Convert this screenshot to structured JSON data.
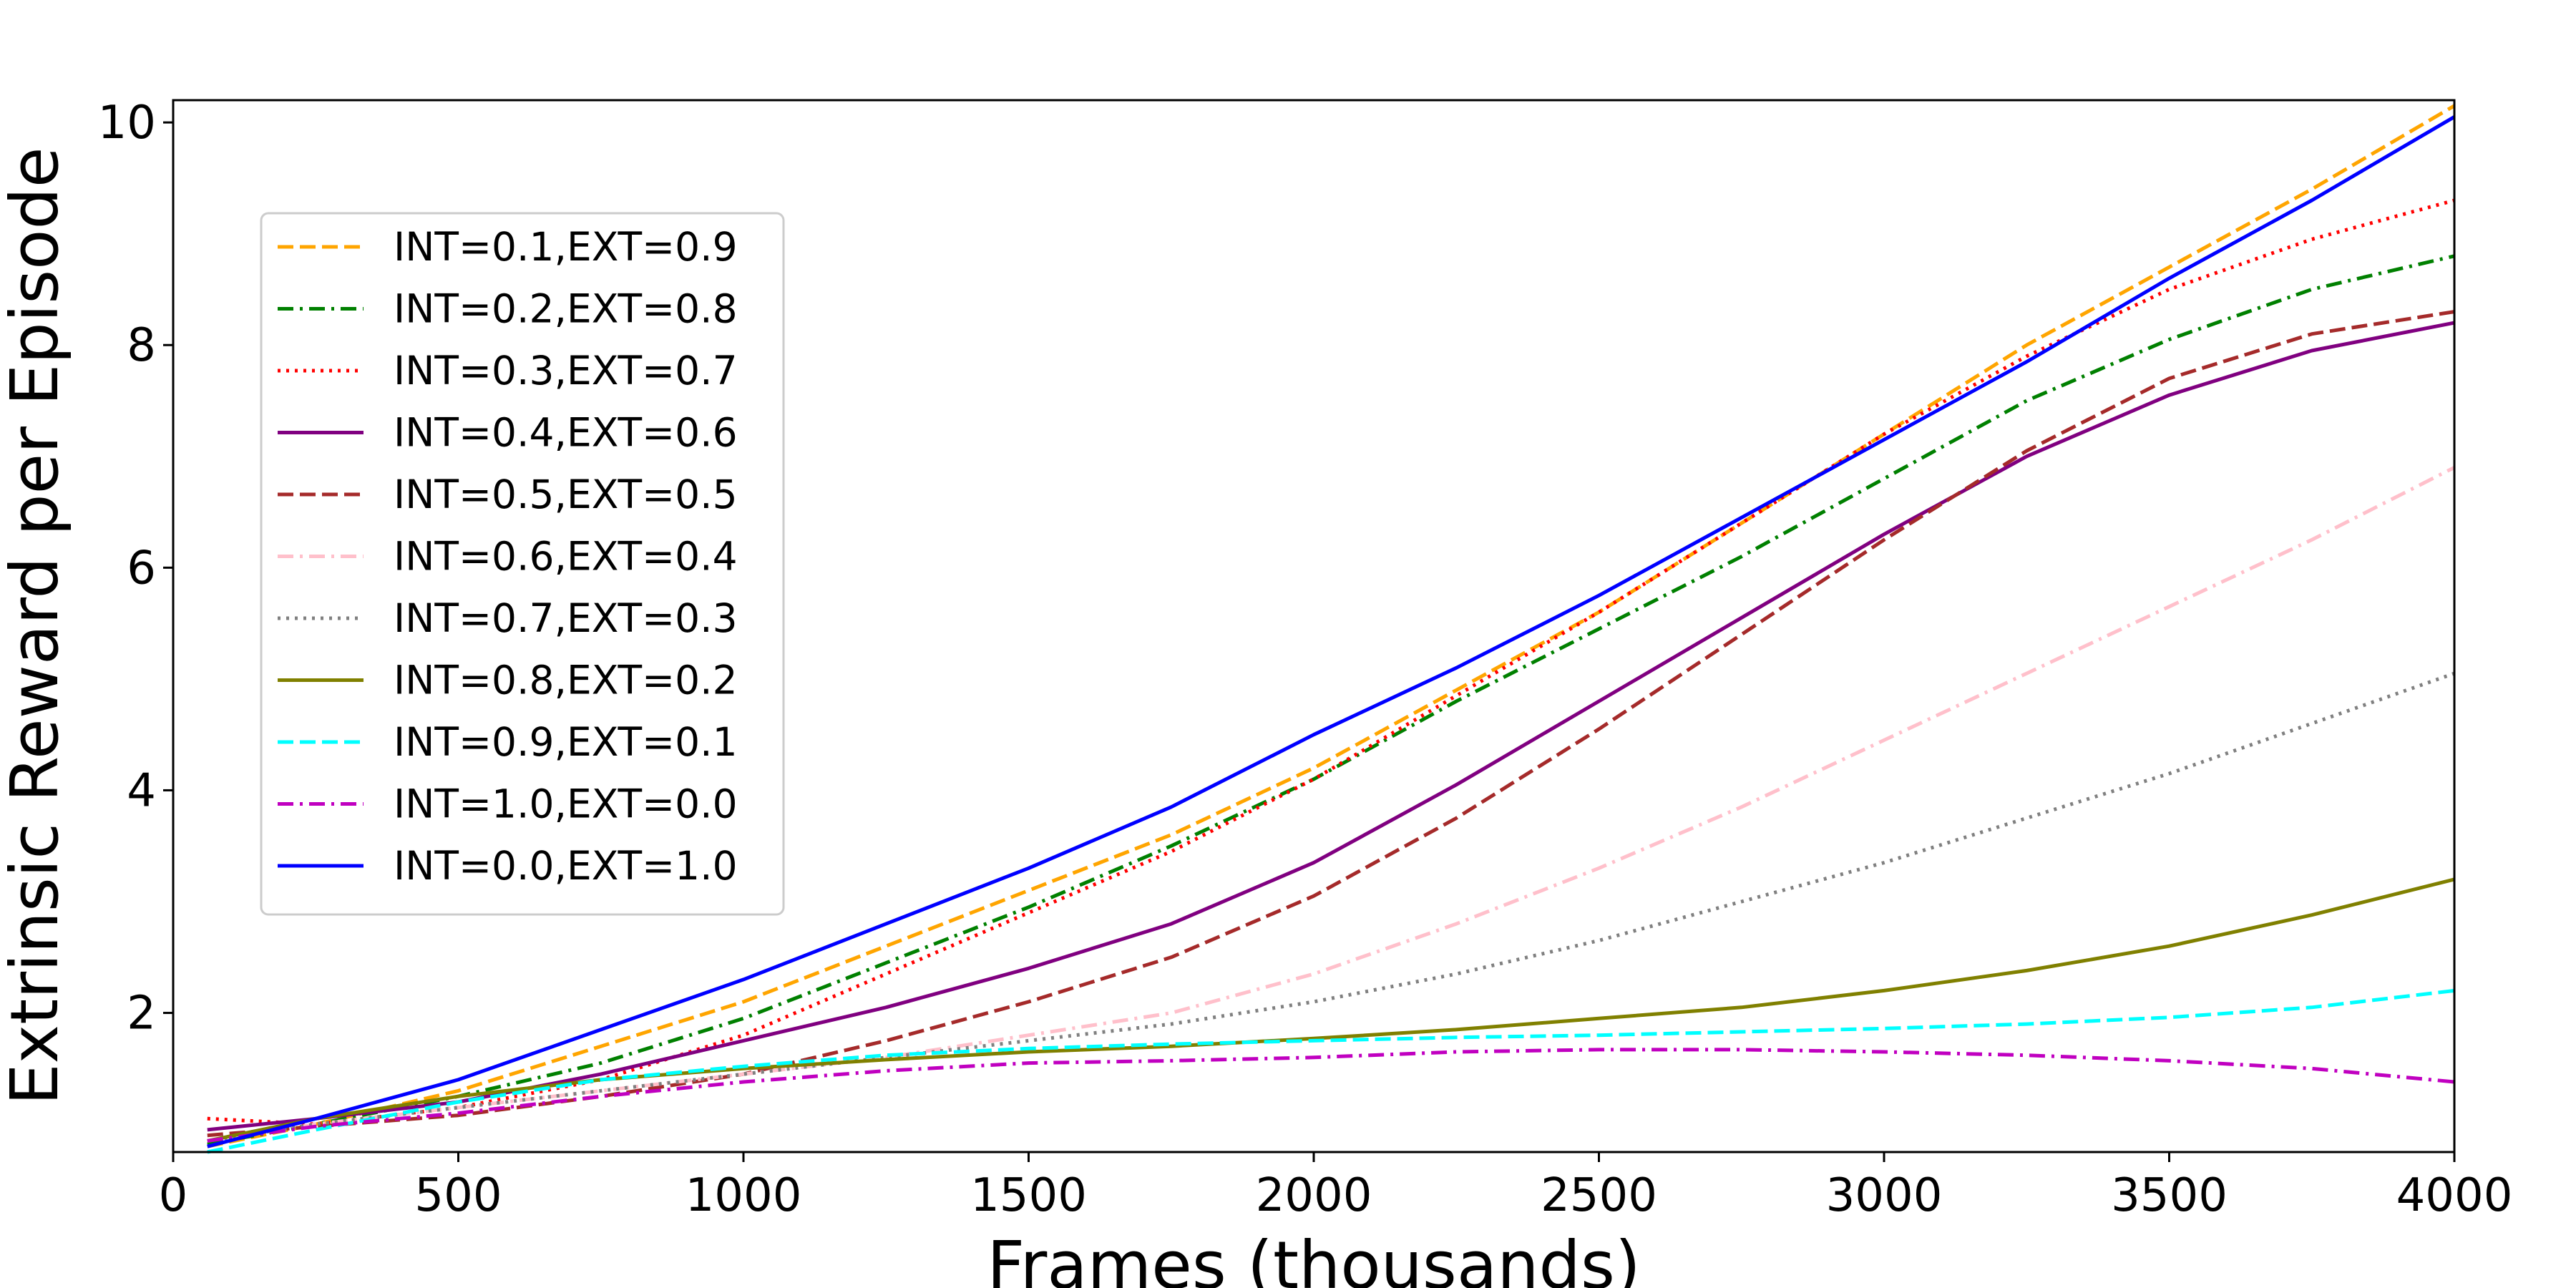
{
  "chart_data": {
    "type": "line",
    "title": "",
    "xlabel": "Frames (thousands)",
    "ylabel": "Extrinsic Reward per Episode",
    "xlim": [
      0,
      4000
    ],
    "ylim": [
      0.75,
      10.2
    ],
    "xticks": [
      0,
      500,
      1000,
      1500,
      2000,
      2500,
      3000,
      3500,
      4000
    ],
    "yticks": [
      2,
      4,
      6,
      8,
      10
    ],
    "grid": false,
    "legend_position": "upper-left",
    "series": [
      {
        "name": "INT=0.1,EXT=0.9",
        "color": "#ffa500",
        "style": "dashed",
        "x": [
          60,
          250,
          500,
          750,
          1000,
          1250,
          1500,
          1750,
          2000,
          2250,
          2500,
          2750,
          3000,
          3250,
          3500,
          3750,
          4000
        ],
        "y": [
          0.8,
          1.0,
          1.3,
          1.7,
          2.1,
          2.6,
          3.1,
          3.6,
          4.2,
          4.9,
          5.6,
          6.4,
          7.2,
          8.0,
          8.7,
          9.4,
          10.15
        ]
      },
      {
        "name": "INT=0.2,EXT=0.8",
        "color": "#008000",
        "style": "dashdot",
        "x": [
          60,
          250,
          500,
          750,
          1000,
          1250,
          1500,
          1750,
          2000,
          2250,
          2500,
          2750,
          3000,
          3250,
          3500,
          3750,
          4000
        ],
        "y": [
          0.82,
          1.0,
          1.25,
          1.55,
          1.95,
          2.45,
          2.95,
          3.5,
          4.1,
          4.8,
          5.45,
          6.1,
          6.8,
          7.5,
          8.05,
          8.5,
          8.8
        ]
      },
      {
        "name": "INT=0.3,EXT=0.7",
        "color": "#ff0000",
        "style": "dotted",
        "x": [
          60,
          250,
          500,
          750,
          1000,
          1250,
          1500,
          1750,
          2000,
          2250,
          2500,
          2750,
          3000,
          3250,
          3500,
          3750,
          4000
        ],
        "y": [
          1.05,
          1.0,
          1.15,
          1.4,
          1.8,
          2.35,
          2.9,
          3.45,
          4.1,
          4.85,
          5.6,
          6.4,
          7.2,
          7.9,
          8.5,
          8.95,
          9.3
        ]
      },
      {
        "name": "INT=0.4,EXT=0.6",
        "color": "#800080",
        "style": "solid",
        "x": [
          60,
          250,
          500,
          750,
          1000,
          1250,
          1500,
          1750,
          2000,
          2250,
          2500,
          2750,
          3000,
          3250,
          3500,
          3750,
          4000
        ],
        "y": [
          0.95,
          1.05,
          1.2,
          1.45,
          1.75,
          2.05,
          2.4,
          2.8,
          3.35,
          4.05,
          4.8,
          5.55,
          6.3,
          7.0,
          7.55,
          7.95,
          8.2
        ]
      },
      {
        "name": "INT=0.5,EXT=0.5",
        "color": "#a52a2a",
        "style": "dashed",
        "x": [
          60,
          250,
          500,
          750,
          1000,
          1250,
          1500,
          1750,
          2000,
          2250,
          2500,
          2750,
          3000,
          3250,
          3500,
          3750,
          4000
        ],
        "y": [
          0.9,
          0.98,
          1.08,
          1.25,
          1.45,
          1.75,
          2.1,
          2.5,
          3.05,
          3.75,
          4.55,
          5.4,
          6.25,
          7.05,
          7.7,
          8.1,
          8.3
        ]
      },
      {
        "name": "INT=0.6,EXT=0.4",
        "color": "#ffc0cb",
        "style": "dashdot",
        "x": [
          60,
          250,
          500,
          750,
          1000,
          1250,
          1500,
          1750,
          2000,
          2250,
          2500,
          2750,
          3000,
          3250,
          3500,
          3750,
          4000
        ],
        "y": [
          0.85,
          1.0,
          1.15,
          1.3,
          1.45,
          1.6,
          1.8,
          2.0,
          2.35,
          2.8,
          3.3,
          3.85,
          4.45,
          5.05,
          5.65,
          6.25,
          6.9
        ]
      },
      {
        "name": "INT=0.7,EXT=0.3",
        "color": "#808080",
        "style": "dotted",
        "x": [
          60,
          250,
          500,
          750,
          1000,
          1250,
          1500,
          1750,
          2000,
          2250,
          2500,
          2750,
          3000,
          3250,
          3500,
          3750,
          4000
        ],
        "y": [
          0.85,
          1.0,
          1.15,
          1.3,
          1.45,
          1.6,
          1.75,
          1.9,
          2.1,
          2.35,
          2.65,
          3.0,
          3.35,
          3.75,
          4.15,
          4.6,
          5.05
        ]
      },
      {
        "name": "INT=0.8,EXT=0.2",
        "color": "#808000",
        "style": "solid",
        "x": [
          60,
          250,
          500,
          750,
          1000,
          1250,
          1500,
          1750,
          2000,
          2250,
          2500,
          2750,
          3000,
          3250,
          3500,
          3750,
          4000
        ],
        "y": [
          0.85,
          1.05,
          1.25,
          1.4,
          1.5,
          1.58,
          1.65,
          1.7,
          1.77,
          1.85,
          1.95,
          2.05,
          2.2,
          2.38,
          2.6,
          2.88,
          3.2
        ]
      },
      {
        "name": "INT=0.9,EXT=0.1",
        "color": "#00ffff",
        "style": "dashed",
        "x": [
          60,
          250,
          500,
          750,
          1000,
          1250,
          1500,
          1750,
          2000,
          2250,
          2500,
          2750,
          3000,
          3250,
          3500,
          3750,
          4000
        ],
        "y": [
          0.75,
          0.95,
          1.2,
          1.4,
          1.52,
          1.62,
          1.68,
          1.72,
          1.75,
          1.78,
          1.8,
          1.83,
          1.86,
          1.9,
          1.96,
          2.05,
          2.2
        ]
      },
      {
        "name": "INT=1.0,EXT=0.0",
        "color": "#c000c0",
        "style": "dashdot",
        "x": [
          60,
          250,
          500,
          750,
          1000,
          1250,
          1500,
          1750,
          2000,
          2250,
          2500,
          2750,
          3000,
          3250,
          3500,
          3750,
          4000
        ],
        "y": [
          0.85,
          0.98,
          1.1,
          1.25,
          1.38,
          1.48,
          1.55,
          1.57,
          1.6,
          1.65,
          1.67,
          1.67,
          1.65,
          1.62,
          1.57,
          1.5,
          1.38
        ]
      },
      {
        "name": "INT=0.0,EXT=1.0",
        "color": "#0000ff",
        "style": "solid",
        "x": [
          60,
          250,
          500,
          750,
          1000,
          1250,
          1500,
          1750,
          2000,
          2250,
          2500,
          2750,
          3000,
          3250,
          3500,
          3750,
          4000
        ],
        "y": [
          0.8,
          1.05,
          1.4,
          1.85,
          2.3,
          2.8,
          3.3,
          3.85,
          4.5,
          5.1,
          5.75,
          6.45,
          7.15,
          7.85,
          8.6,
          9.3,
          10.05
        ]
      }
    ]
  }
}
